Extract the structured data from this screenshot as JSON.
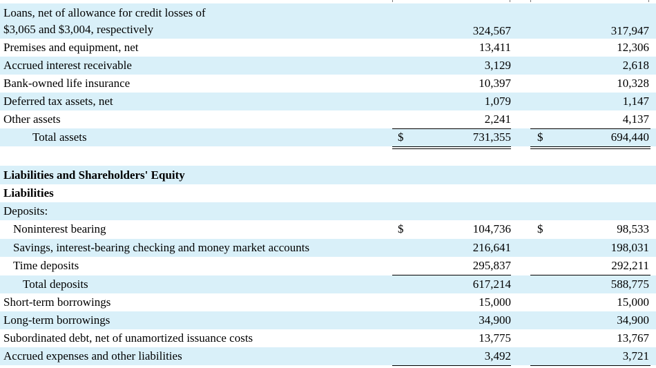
{
  "assets_rows": [
    {
      "label": "Loans, net of allowance for credit losses of",
      "label2": "$3,065 and $3,004, respectively",
      "v1": "324,567",
      "v2": "317,947"
    },
    {
      "label": "Premises and equipment, net",
      "v1": "13,411",
      "v2": "12,306"
    },
    {
      "label": "Accrued interest receivable",
      "v1": "3,129",
      "v2": "2,618"
    },
    {
      "label": "Bank-owned life insurance",
      "v1": "10,397",
      "v2": "10,328"
    },
    {
      "label": "Deferred tax assets, net",
      "v1": "1,079",
      "v2": "1,147"
    },
    {
      "label": "Other assets",
      "v1": "2,241",
      "v2": "4,137"
    },
    {
      "label": "Total assets",
      "d1": "$",
      "v1": "731,355",
      "d2": "$",
      "v2": "694,440"
    }
  ],
  "liabilities_header": "Liabilities and Shareholders' Equity",
  "liabilities_subheader": "Liabilities",
  "deposits_label": "Deposits:",
  "liab_rows": [
    {
      "label": "Noninterest bearing",
      "d1": "$",
      "v1": "104,736",
      "d2": "$",
      "v2": "98,533"
    },
    {
      "label": "Savings, interest-bearing checking and money market accounts",
      "v1": "216,641",
      "v2": "198,031"
    },
    {
      "label": "Time deposits",
      "v1": "295,837",
      "v2": "292,211"
    },
    {
      "label": "Total deposits",
      "v1": "617,214",
      "v2": "588,775"
    },
    {
      "label": "Short-term borrowings",
      "v1": "15,000",
      "v2": "15,000"
    },
    {
      "label": "Long-term borrowings",
      "v1": "34,900",
      "v2": "34,900"
    },
    {
      "label": "Subordinated debt, net of unamortized issuance costs",
      "v1": "13,775",
      "v2": "13,767"
    },
    {
      "label": "Accrued expenses and other liabilities",
      "v1": "3,492",
      "v2": "3,721"
    }
  ]
}
